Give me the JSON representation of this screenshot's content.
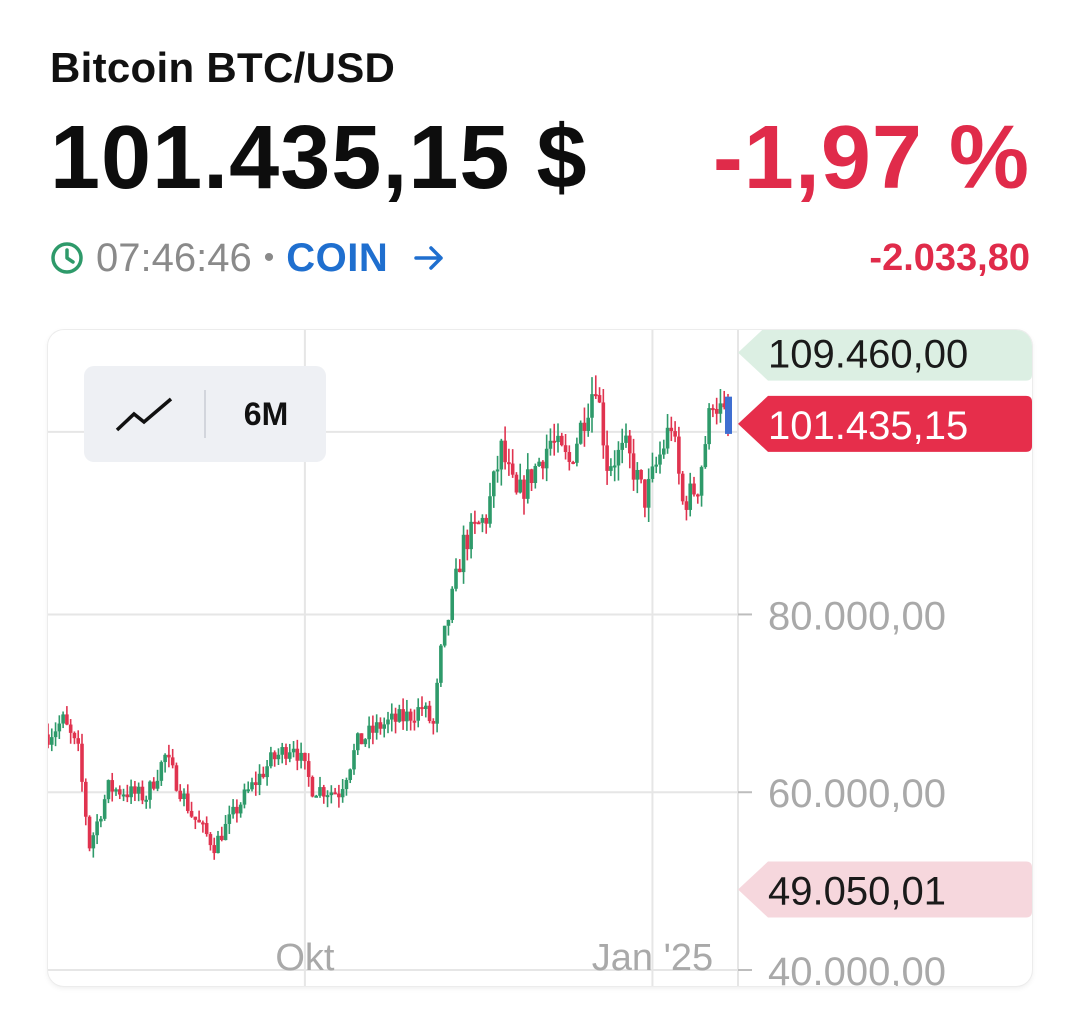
{
  "header": {
    "title": "Bitcoin BTC/USD",
    "price": "101.435,15 $",
    "change_pct": "-1,97 %",
    "time": "07:46:46",
    "separator": "•",
    "exchange": "COIN",
    "change_abs": "-2.033,80"
  },
  "colors": {
    "negative": "#e02b4a",
    "link": "#1f6fcf",
    "clock": "#2e9a6a",
    "up_candle": "#2e9a6a",
    "down_candle": "#e0334f",
    "high_marker_bg": "#dcefe3",
    "current_marker_bg": "#e62e4b",
    "low_marker_bg": "#f6d7dd"
  },
  "icons": {
    "clock": "clock-icon",
    "arrow": "arrow-right-icon",
    "chart_type": "line-chart-icon"
  },
  "controls": {
    "range": "6M"
  },
  "chart_data": {
    "type": "candlestick",
    "x_range": [
      "2024-07-25",
      "2025-01-21"
    ],
    "ylim": [
      40000,
      112000
    ],
    "y_ticks": [
      {
        "value": 80000,
        "label": "80.000,00"
      },
      {
        "value": 60000,
        "label": "60.000,00"
      },
      {
        "value": 40000,
        "label": "40.000,00"
      }
    ],
    "x_ticks": [
      {
        "date": "2024-10-01",
        "label": "Okt"
      },
      {
        "date": "2025-01-01",
        "label": "Jan '25"
      }
    ],
    "markers": {
      "high": {
        "value": 109460.0,
        "label": "109.460,00"
      },
      "current": {
        "value": 101435.15,
        "label": "101.435,15"
      },
      "low": {
        "value": 49050.01,
        "label": "49.050,01"
      }
    },
    "close_approx": [
      {
        "date": "2024-07-25",
        "value": 66500
      },
      {
        "date": "2024-07-29",
        "value": 68000
      },
      {
        "date": "2024-08-02",
        "value": 64500
      },
      {
        "date": "2024-08-05",
        "value": 54000
      },
      {
        "date": "2024-08-10",
        "value": 60500
      },
      {
        "date": "2024-08-20",
        "value": 59500
      },
      {
        "date": "2024-08-25",
        "value": 64000
      },
      {
        "date": "2024-09-01",
        "value": 57500
      },
      {
        "date": "2024-09-07",
        "value": 54000
      },
      {
        "date": "2024-09-15",
        "value": 59500
      },
      {
        "date": "2024-09-22",
        "value": 63500
      },
      {
        "date": "2024-09-28",
        "value": 65500
      },
      {
        "date": "2024-10-03",
        "value": 60500
      },
      {
        "date": "2024-10-10",
        "value": 60000
      },
      {
        "date": "2024-10-15",
        "value": 65500
      },
      {
        "date": "2024-10-21",
        "value": 67500
      },
      {
        "date": "2024-10-28",
        "value": 68500
      },
      {
        "date": "2024-11-01",
        "value": 69500
      },
      {
        "date": "2024-11-04",
        "value": 67500
      },
      {
        "date": "2024-11-06",
        "value": 75500
      },
      {
        "date": "2024-11-12",
        "value": 88000
      },
      {
        "date": "2024-11-18",
        "value": 91000
      },
      {
        "date": "2024-11-22",
        "value": 98500
      },
      {
        "date": "2024-11-26",
        "value": 93000
      },
      {
        "date": "2024-12-01",
        "value": 96500
      },
      {
        "date": "2024-12-05",
        "value": 99500
      },
      {
        "date": "2024-12-10",
        "value": 97000
      },
      {
        "date": "2024-12-17",
        "value": 106500
      },
      {
        "date": "2024-12-20",
        "value": 97000
      },
      {
        "date": "2024-12-25",
        "value": 98500
      },
      {
        "date": "2024-12-30",
        "value": 93000
      },
      {
        "date": "2025-01-06",
        "value": 101500
      },
      {
        "date": "2025-01-09",
        "value": 92500
      },
      {
        "date": "2025-01-13",
        "value": 94500
      },
      {
        "date": "2025-01-17",
        "value": 104500
      },
      {
        "date": "2025-01-20",
        "value": 102000
      },
      {
        "date": "2025-01-21",
        "value": 101435
      }
    ]
  }
}
